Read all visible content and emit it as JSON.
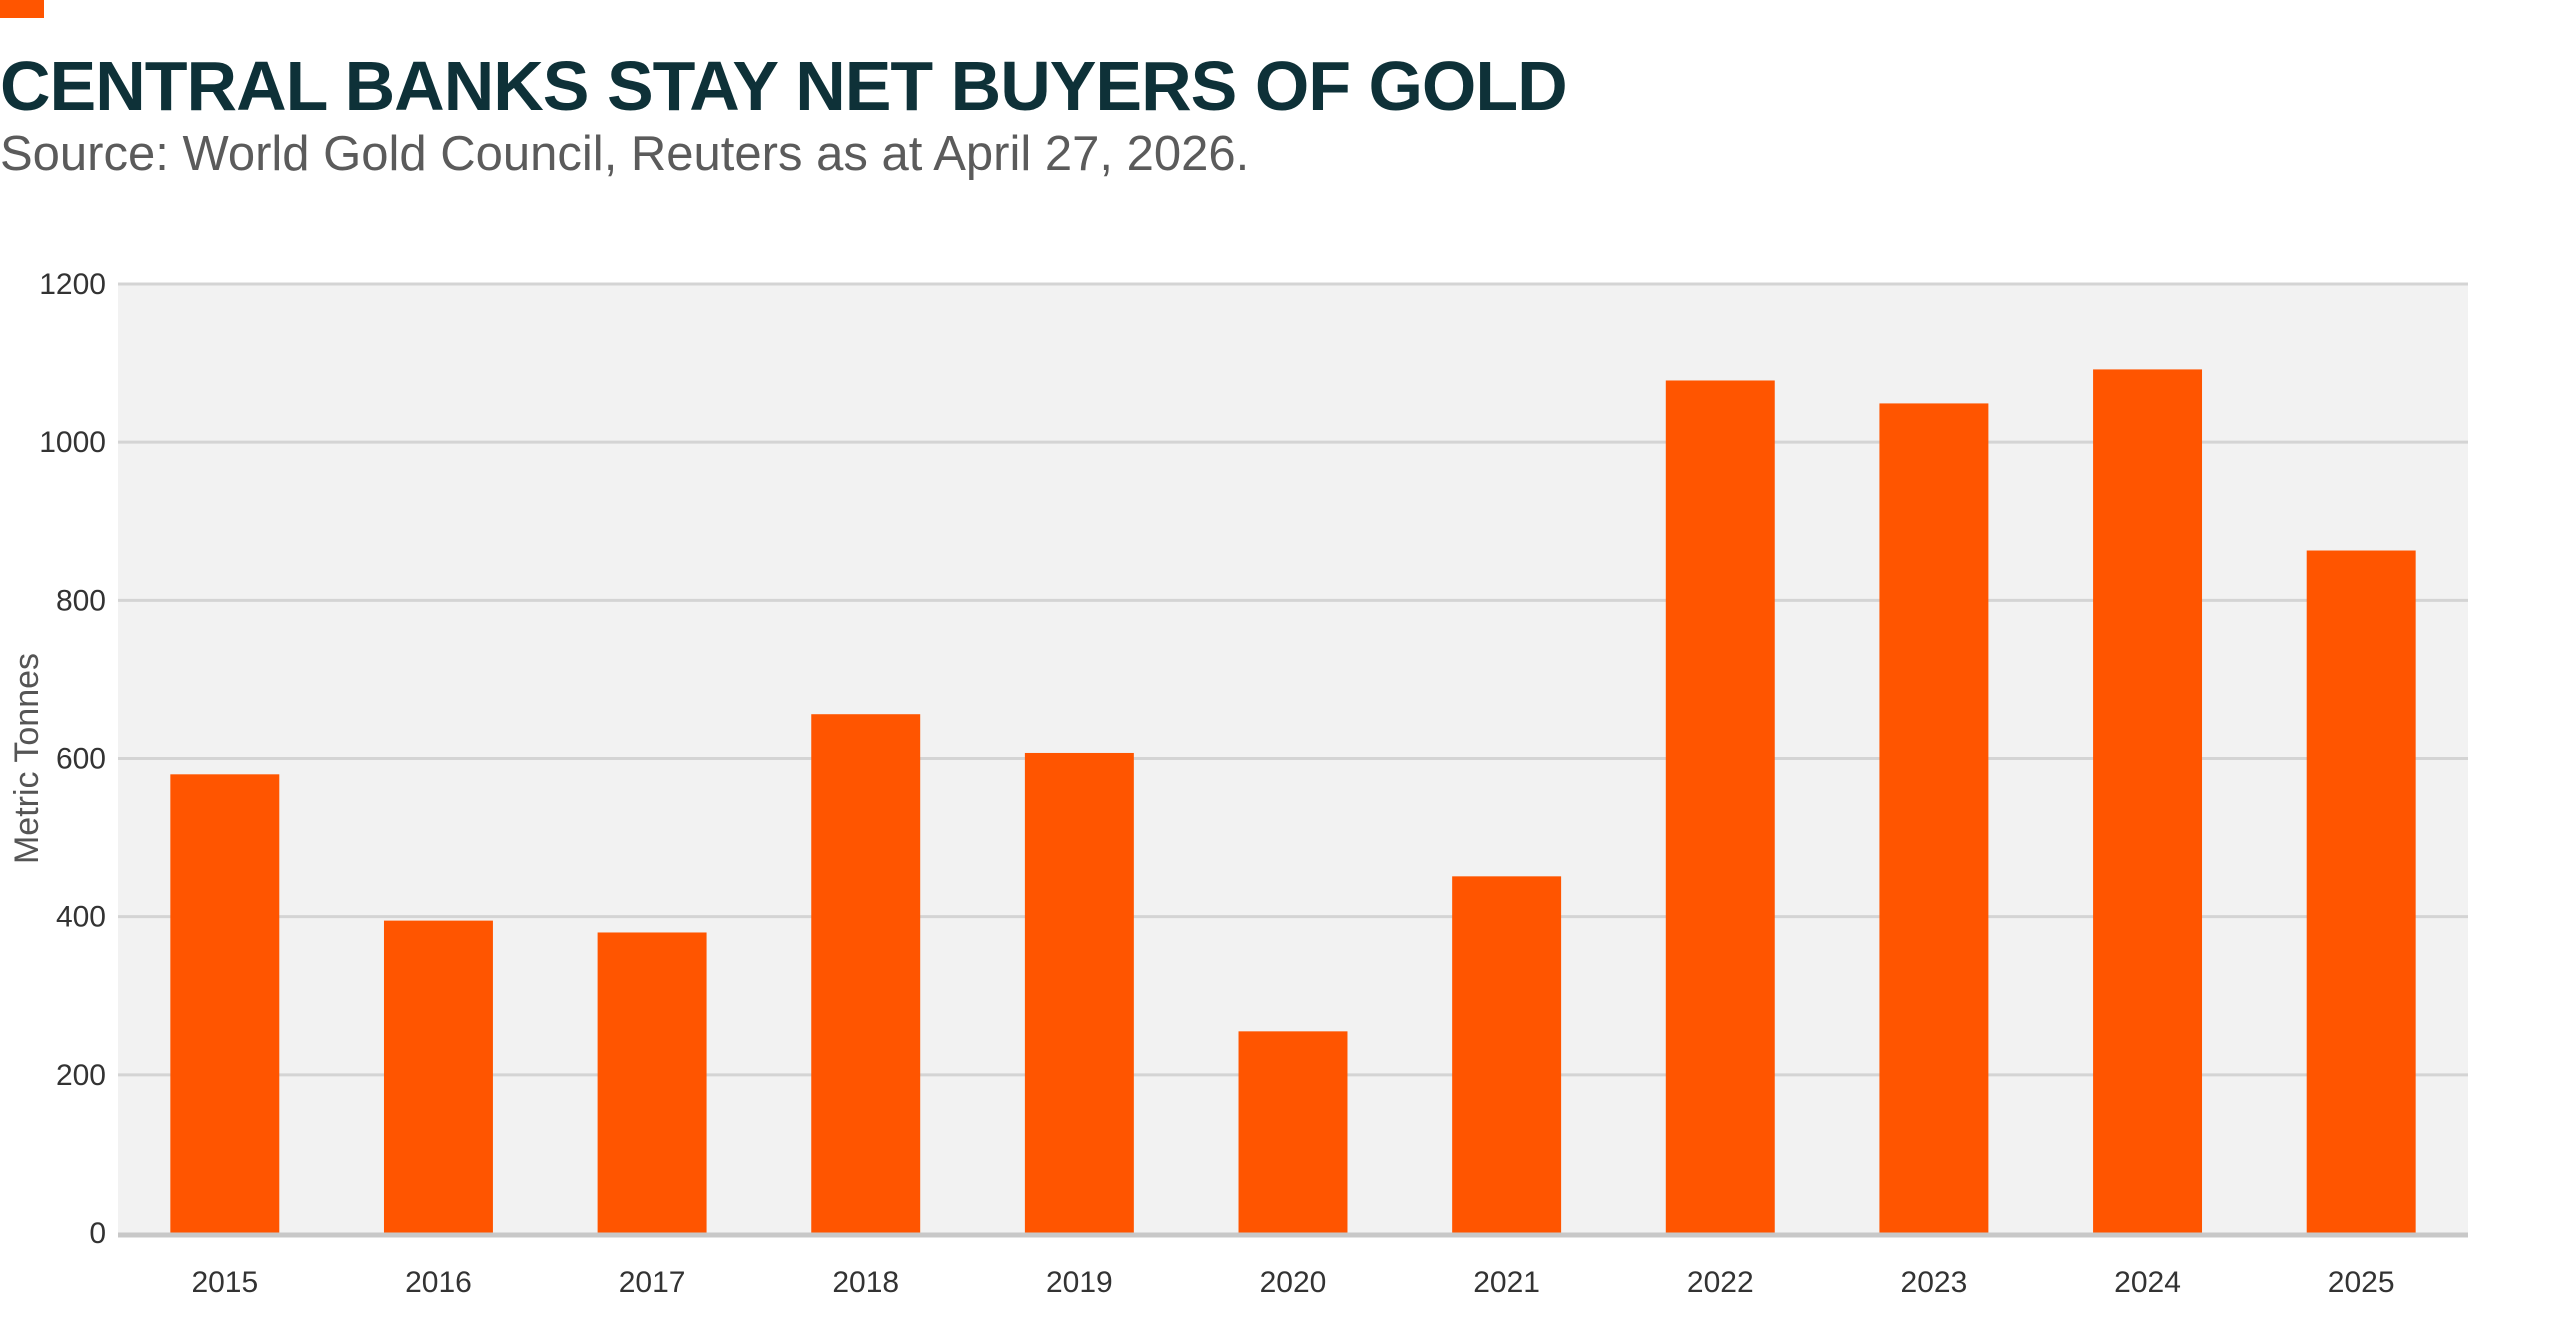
{
  "colors": {
    "accent": "#ff5500",
    "bar": "#ff5500",
    "plot_background": "#f2f2f2",
    "gridline": "#d4d4d4",
    "baseline": "#c8c8c8",
    "title": "#0e3138",
    "subtitle": "#5b5b5b"
  },
  "header": {
    "title": "CENTRAL BANKS STAY NET BUYERS OF GOLD",
    "subtitle": "Source: World Gold Council, Reuters as at April 27, 2026."
  },
  "chart_data": {
    "type": "bar",
    "title": "CENTRAL BANKS STAY NET BUYERS OF GOLD",
    "subtitle": "Source: World Gold Council, Reuters as at April 27, 2026.",
    "categories": [
      "2015",
      "2016",
      "2017",
      "2018",
      "2019",
      "2020",
      "2021",
      "2022",
      "2023",
      "2024",
      "2025"
    ],
    "values": [
      580,
      395,
      380,
      656,
      607,
      255,
      451,
      1078,
      1049,
      1092,
      863
    ],
    "xlabel": "",
    "ylabel": "Metric Tonnes",
    "ylim": [
      0,
      1200
    ],
    "yticks": [
      0,
      200,
      400,
      600,
      800,
      1000,
      1200
    ],
    "grid": true,
    "legend": "none"
  }
}
